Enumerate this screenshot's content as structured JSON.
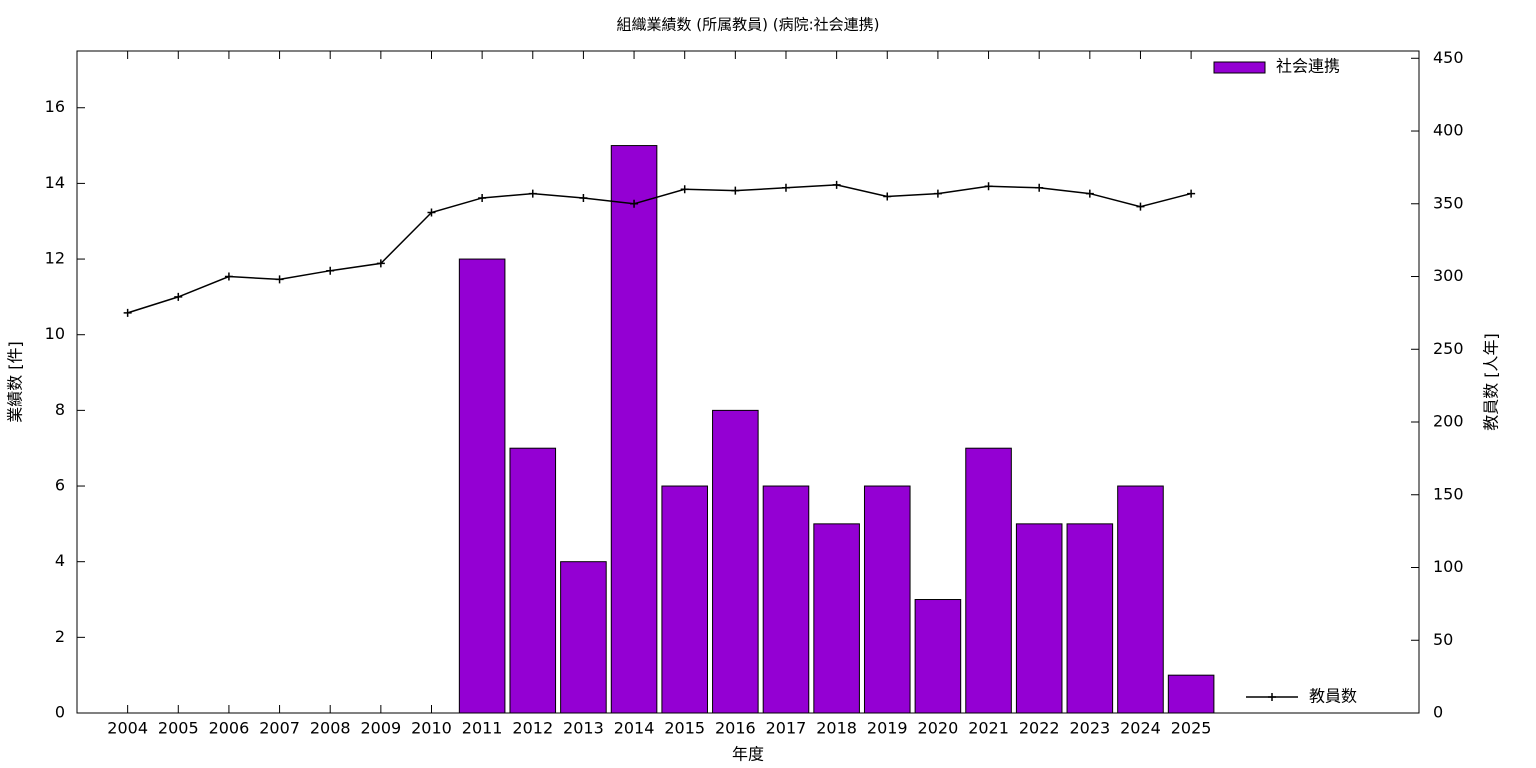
{
  "chart_data": {
    "type": "bar_line",
    "title": "組織業績数 (所属教員) (病院:社会連携)",
    "xlabel": "年度",
    "ylabel": "業績数 [件]",
    "y2label": "教員数 [人年]",
    "categories": [
      "2004",
      "2005",
      "2006",
      "2007",
      "2008",
      "2009",
      "2010",
      "2011",
      "2012",
      "2013",
      "2014",
      "2015",
      "2016",
      "2017",
      "2018",
      "2019",
      "2020",
      "2021",
      "2022",
      "2023",
      "2024",
      "2025"
    ],
    "series": [
      {
        "name": "社会連携",
        "type": "bar",
        "color": "#9400d3",
        "values": [
          null,
          null,
          null,
          null,
          null,
          null,
          null,
          12,
          7,
          4,
          15,
          6,
          8,
          6,
          5,
          6,
          3,
          7,
          5,
          5,
          6,
          1
        ]
      },
      {
        "name": "教員数",
        "type": "line",
        "axis": "y2",
        "color": "#000000",
        "values": [
          275,
          286,
          300,
          298,
          304,
          309,
          344,
          354,
          357,
          354,
          350,
          360,
          359,
          361,
          363,
          355,
          357,
          362,
          361,
          357,
          348,
          357
        ]
      }
    ],
    "ylim": [
      0,
      17.5
    ],
    "yticks": [
      0,
      2,
      4,
      6,
      8,
      10,
      12,
      14,
      16
    ],
    "y2lim": [
      0,
      455
    ],
    "y2ticks": [
      0,
      50,
      100,
      150,
      200,
      250,
      300,
      350,
      400,
      450
    ],
    "legend": "top-right"
  }
}
